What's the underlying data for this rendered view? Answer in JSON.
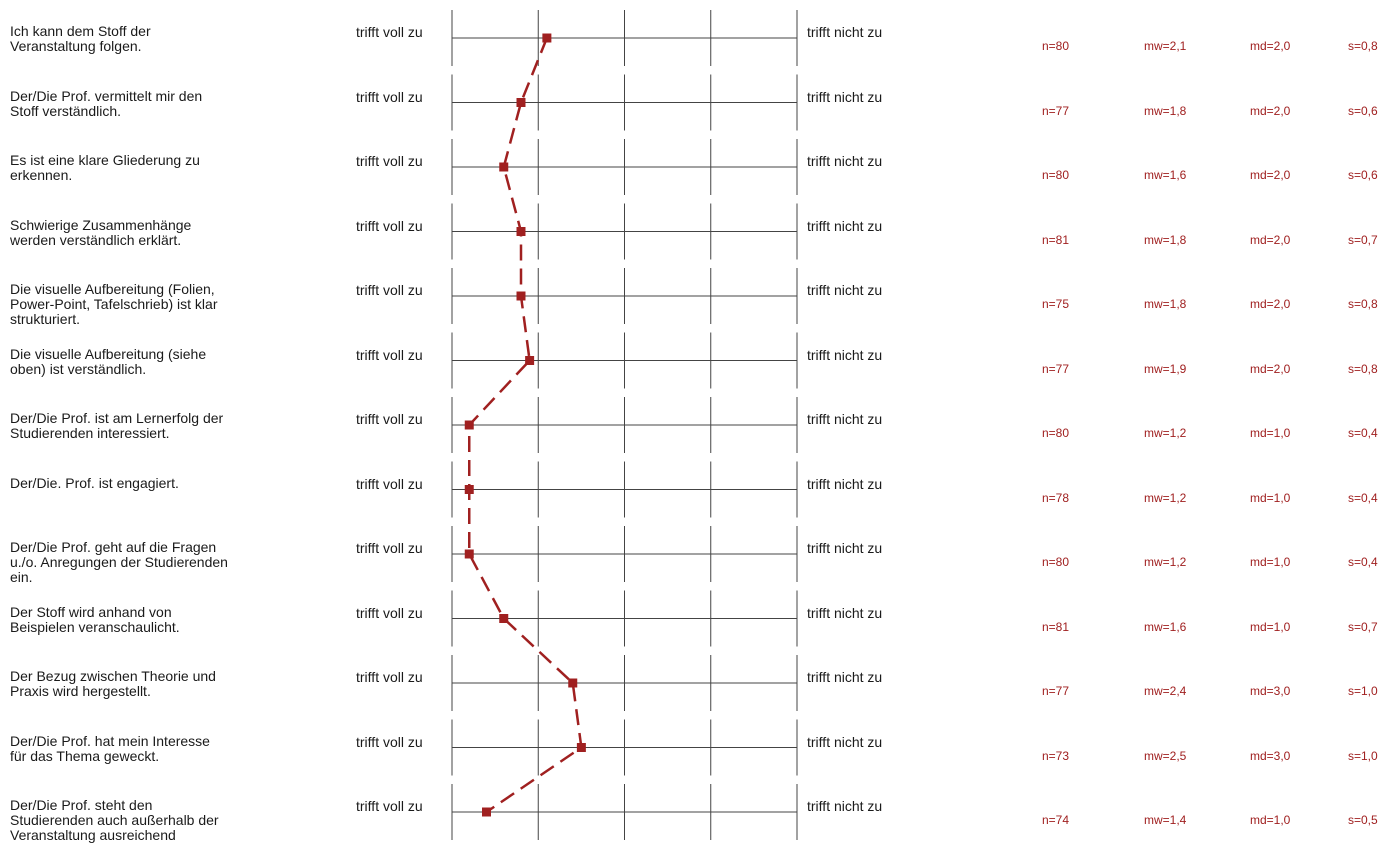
{
  "chart_data": {
    "type": "line",
    "scale_min": 1,
    "scale_max": 5,
    "left_label": "trifft voll zu",
    "right_label": "trifft nicht zu",
    "line_color": "#a02020",
    "rows": [
      {
        "question": "Ich kann dem Stoff der\nVeranstaltung folgen.",
        "n": "n=80",
        "mw": "mw=2,1",
        "md": "md=2,0",
        "s": "s=0,8",
        "value": 2.1
      },
      {
        "question": "Der/Die Prof. vermittelt mir den\nStoff verständlich.",
        "n": "n=77",
        "mw": "mw=1,8",
        "md": "md=2,0",
        "s": "s=0,6",
        "value": 1.8
      },
      {
        "question": "Es ist eine klare Gliederung zu\nerkennen.",
        "n": "n=80",
        "mw": "mw=1,6",
        "md": "md=2,0",
        "s": "s=0,6",
        "value": 1.6
      },
      {
        "question": "Schwierige Zusammenhänge\nwerden verständlich erklärt.",
        "n": "n=81",
        "mw": "mw=1,8",
        "md": "md=2,0",
        "s": "s=0,7",
        "value": 1.8
      },
      {
        "question": "Die visuelle Aufbereitung  (Folien,\nPower-Point, Tafelschrieb) ist klar\nstrukturiert.",
        "n": "n=75",
        "mw": "mw=1,8",
        "md": "md=2,0",
        "s": "s=0,8",
        "value": 1.8
      },
      {
        "question": "Die visuelle Aufbereitung (siehe\noben) ist verständlich.",
        "n": "n=77",
        "mw": "mw=1,9",
        "md": "md=2,0",
        "s": "s=0,8",
        "value": 1.9
      },
      {
        "question": "Der/Die Prof. ist am Lernerfolg der\nStudierenden interessiert.",
        "n": "n=80",
        "mw": "mw=1,2",
        "md": "md=1,0",
        "s": "s=0,4",
        "value": 1.2
      },
      {
        "question": "Der/Die. Prof. ist engagiert.",
        "n": "n=78",
        "mw": "mw=1,2",
        "md": "md=1,0",
        "s": "s=0,4",
        "value": 1.2
      },
      {
        "question": "Der/Die Prof. geht auf die Fragen\nu./o. Anregungen der Studierenden\nein.",
        "n": "n=80",
        "mw": "mw=1,2",
        "md": "md=1,0",
        "s": "s=0,4",
        "value": 1.2
      },
      {
        "question": "Der Stoff wird anhand von\nBeispielen veranschaulicht.",
        "n": "n=81",
        "mw": "mw=1,6",
        "md": "md=1,0",
        "s": "s=0,7",
        "value": 1.6
      },
      {
        "question": "Der Bezug zwischen Theorie und\nPraxis wird hergestellt.",
        "n": "n=77",
        "mw": "mw=2,4",
        "md": "md=3,0",
        "s": "s=1,0",
        "value": 2.4
      },
      {
        "question": "Der/Die Prof. hat mein Interesse\nfür das Thema geweckt.",
        "n": "n=73",
        "mw": "mw=2,5",
        "md": "md=3,0",
        "s": "s=1,0",
        "value": 2.5
      },
      {
        "question": "Der/Die Prof. steht den\nStudierenden auch außerhalb der\nVeranstaltung ausreichend",
        "n": "n=74",
        "mw": "mw=1,4",
        "md": "md=1,0",
        "s": "s=0,5",
        "value": 1.4
      }
    ]
  }
}
